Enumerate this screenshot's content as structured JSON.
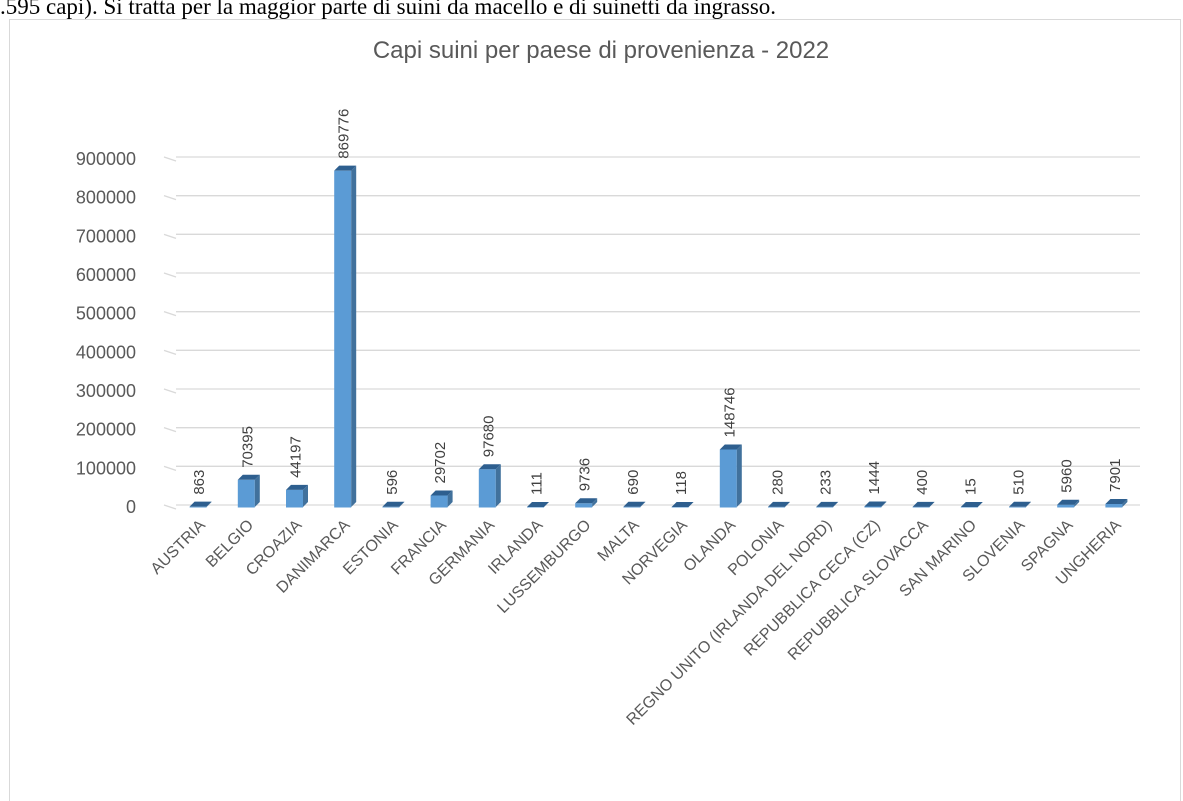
{
  "document": {
    "text_line": ".595 capi). Si tratta per la maggior parte di suini da macello e di suinetti da ingrasso."
  },
  "chart_data": {
    "type": "bar",
    "title": "Capi suini per paese di provenienza - 2022",
    "xlabel": "",
    "ylabel": "",
    "ylim": [
      0,
      900000
    ],
    "yticks": [
      0,
      100000,
      200000,
      300000,
      400000,
      500000,
      600000,
      700000,
      800000,
      900000
    ],
    "grid": true,
    "legend": "none",
    "bar_color": "#5b9bd5",
    "bar_side_color": "#41719c",
    "bar_top_color": "#2e5f8f",
    "categories": [
      "AUSTRIA",
      "BELGIO",
      "CROAZIA",
      "DANIMARCA",
      "ESTONIA",
      "FRANCIA",
      "GERMANIA",
      "IRLANDA",
      "LUSSEMBURGO",
      "MALTA",
      "NORVEGIA",
      "OLANDA",
      "POLONIA",
      "REGNO UNITO (IRLANDA DEL NORD)",
      "REPUBBLICA CECA   (CZ)",
      "REPUBBLICA SLOVACCA",
      "SAN MARINO",
      "SLOVENIA",
      "SPAGNA",
      "UNGHERIA"
    ],
    "values": [
      863,
      70395,
      44197,
      869776,
      596,
      29702,
      97680,
      111,
      9736,
      690,
      118,
      148746,
      280,
      233,
      1444,
      400,
      15,
      510,
      5960,
      7901
    ]
  }
}
